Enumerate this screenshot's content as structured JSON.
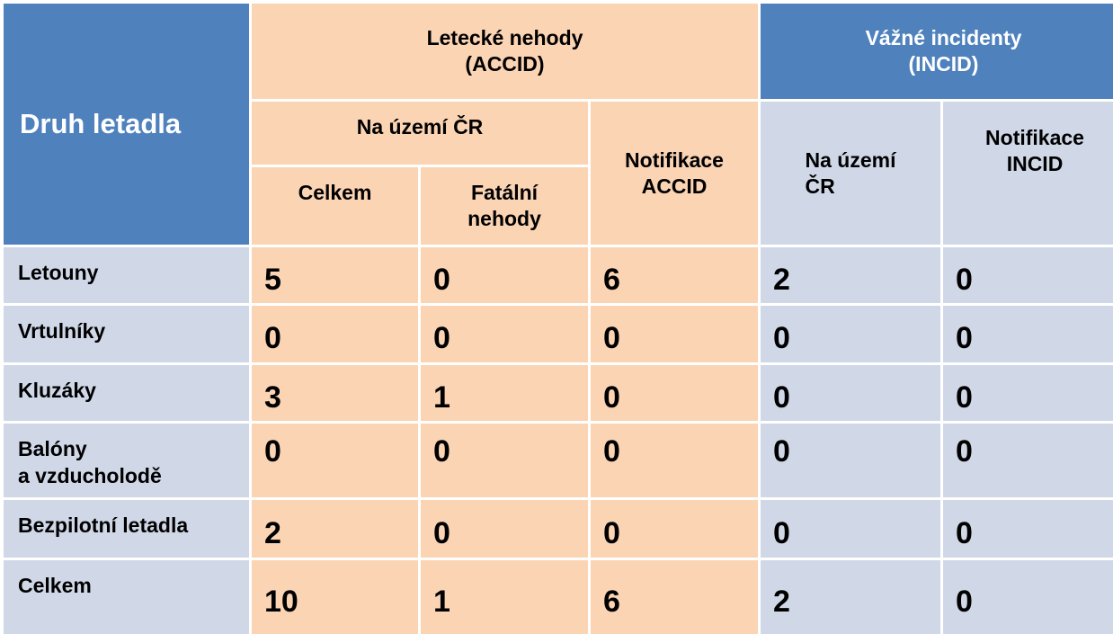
{
  "header": {
    "corner": "Druh letadla",
    "accid_group_line1": "Letecké nehody",
    "accid_group_line2": "(ACCID)",
    "incid_group_line1": "Vážné incidenty",
    "incid_group_line2": "(INCID)",
    "na_uzemi_cr": "Na území ČR",
    "celkem": "Celkem",
    "fatalni_line1": "Fatální",
    "fatalni_line2": "nehody",
    "notif_accid_line1": "Notifikace",
    "notif_accid_line2": "ACCID",
    "incid_na_uzemi_line1": "Na území",
    "incid_na_uzemi_line2": "ČR",
    "notif_incid_line1": "Notifikace",
    "notif_incid_line2": "INCID"
  },
  "rows": [
    {
      "label_line1": "Letouny",
      "label_line2": "",
      "values": [
        "5",
        "0",
        "6",
        "2",
        "0"
      ]
    },
    {
      "label_line1": "Vrtulníky",
      "label_line2": "",
      "values": [
        "0",
        "0",
        "0",
        "0",
        "0"
      ]
    },
    {
      "label_line1": "Kluzáky",
      "label_line2": "",
      "values": [
        "3",
        "1",
        "0",
        "0",
        "0"
      ]
    },
    {
      "label_line1": "Balóny",
      "label_line2": "a vzducholodě",
      "values": [
        "0",
        "0",
        "0",
        "0",
        "0"
      ]
    },
    {
      "label_line1": "Bezpilotní letadla",
      "label_line2": "",
      "values": [
        "2",
        "0",
        "0",
        "0",
        "0"
      ]
    },
    {
      "label_line1": "Celkem",
      "label_line2": "",
      "values": [
        "10",
        "1",
        "6",
        "2",
        "0"
      ]
    }
  ],
  "colors": {
    "header_blue": "#4f81bd",
    "accid_peach": "#fbd4b4",
    "incid_light_blue": "#d0d8e8"
  }
}
